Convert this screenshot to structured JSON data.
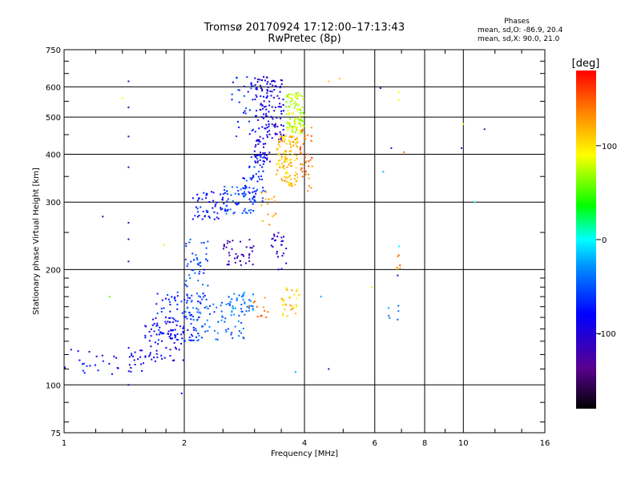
{
  "header": {
    "title": "Tromsø 20170924 17:12:00–17:13:43",
    "subtitle": "RwPretec (8p)",
    "phases_label": "Phases",
    "mean_o": "mean, sd,O: -86.9, 20.4",
    "mean_x": "mean, sd,X:  90.0, 21.0"
  },
  "colorbar": {
    "unit_label": "[deg]",
    "ticks": [
      {
        "label": "100",
        "value": 100
      },
      {
        "label": "0",
        "value": 0
      },
      {
        "label": "-100",
        "value": -100
      }
    ],
    "range": [
      -180,
      180
    ]
  },
  "chart_data": {
    "type": "scatter",
    "title": "Tromsø 20170924 17:12:00–17:13:43",
    "subtitle": "RwPretec (8p)",
    "xlabel": "Frequency [MHz]",
    "ylabel": "Stationary phase Virtual Height [km]",
    "x_scale": "log",
    "y_scale": "log",
    "xlim": [
      1,
      16
    ],
    "ylim": [
      75,
      750
    ],
    "xticks": [
      {
        "label": "1",
        "value": 1
      },
      {
        "label": "2",
        "value": 2
      },
      {
        "label": "4",
        "value": 4
      },
      {
        "label": "6",
        "value": 6
      },
      {
        "label": "8",
        "value": 8
      },
      {
        "label": "10",
        "value": 10
      },
      {
        "label": "16",
        "value": 16
      }
    ],
    "yticks": [
      {
        "label": "750",
        "value": 750
      },
      {
        "label": "600",
        "value": 600
      },
      {
        "label": "500",
        "value": 500
      },
      {
        "label": "400",
        "value": 400
      },
      {
        "label": "300",
        "value": 300
      },
      {
        "label": "200",
        "value": 200
      },
      {
        "label": "100",
        "value": 100
      },
      {
        "label": "75",
        "value": 75
      }
    ],
    "grid": true,
    "color_quantity": "phase [deg]",
    "point_groups": [
      {
        "x_range": [
          1.0,
          1.6
        ],
        "y_range": [
          105,
          125
        ],
        "phase": -85,
        "count": 40
      },
      {
        "x_range": [
          1.55,
          2.0
        ],
        "y_range": [
          115,
          150
        ],
        "phase": -95,
        "count": 70
      },
      {
        "x_range": [
          1.7,
          2.2
        ],
        "y_range": [
          130,
          175
        ],
        "phase": -70,
        "count": 90
      },
      {
        "x_range": [
          2.0,
          2.9
        ],
        "y_range": [
          130,
          175
        ],
        "phase": -45,
        "count": 90
      },
      {
        "x_range": [
          2.0,
          2.3
        ],
        "y_range": [
          170,
          240
        ],
        "phase": -55,
        "count": 45
      },
      {
        "x_range": [
          2.6,
          3.0
        ],
        "y_range": [
          150,
          175
        ],
        "phase": -35,
        "count": 30
      },
      {
        "x_range": [
          3.5,
          3.9
        ],
        "y_range": [
          150,
          180
        ],
        "phase": 110,
        "count": 30
      },
      {
        "x_range": [
          2.9,
          3.25
        ],
        "y_range": [
          150,
          170
        ],
        "phase": 140,
        "count": 12
      },
      {
        "x_range": [
          2.5,
          3.0
        ],
        "y_range": [
          205,
          240
        ],
        "phase": -115,
        "count": 40
      },
      {
        "x_range": [
          3.3,
          3.6
        ],
        "y_range": [
          200,
          250
        ],
        "phase": -105,
        "count": 25
      },
      {
        "x_range": [
          2.1,
          2.6
        ],
        "y_range": [
          270,
          320
        ],
        "phase": -75,
        "count": 55
      },
      {
        "x_range": [
          2.5,
          3.0
        ],
        "y_range": [
          280,
          330
        ],
        "phase": -55,
        "count": 60
      },
      {
        "x_range": [
          2.8,
          3.2
        ],
        "y_range": [
          300,
          400
        ],
        "phase": -65,
        "count": 55
      },
      {
        "x_range": [
          3.0,
          3.3
        ],
        "y_range": [
          380,
          640
        ],
        "phase": -95,
        "count": 110
      },
      {
        "x_range": [
          3.3,
          3.55
        ],
        "y_range": [
          430,
          630
        ],
        "phase": -100,
        "count": 60
      },
      {
        "x_range": [
          2.6,
          3.0
        ],
        "y_range": [
          430,
          640
        ],
        "phase": -65,
        "count": 30
      },
      {
        "x_range": [
          3.4,
          3.85
        ],
        "y_range": [
          330,
          450
        ],
        "phase": 115,
        "count": 120
      },
      {
        "x_range": [
          3.6,
          4.0
        ],
        "y_range": [
          450,
          580
        ],
        "phase": 75,
        "count": 100
      },
      {
        "x_range": [
          3.9,
          4.2
        ],
        "y_range": [
          320,
          470
        ],
        "phase": 140,
        "count": 40
      },
      {
        "x_range": [
          3.1,
          3.4
        ],
        "y_range": [
          260,
          330
        ],
        "phase": 125,
        "count": 15
      },
      {
        "x_range": [
          6.8,
          7.0
        ],
        "y_range": [
          200,
          220
        ],
        "phase": 130,
        "count": 6
      },
      {
        "x_range": [
          6.4,
          6.9
        ],
        "y_range": [
          145,
          170
        ],
        "phase": -40,
        "count": 6
      }
    ],
    "isolated_points": [
      {
        "x": 1.45,
        "y": 620,
        "phase": -100
      },
      {
        "x": 1.45,
        "y": 530,
        "phase": -100
      },
      {
        "x": 1.45,
        "y": 445,
        "phase": -110
      },
      {
        "x": 1.45,
        "y": 370,
        "phase": -110
      },
      {
        "x": 1.45,
        "y": 265,
        "phase": -100
      },
      {
        "x": 1.45,
        "y": 240,
        "phase": -100
      },
      {
        "x": 1.45,
        "y": 210,
        "phase": -110
      },
      {
        "x": 1.45,
        "y": 100,
        "phase": -110
      },
      {
        "x": 1.4,
        "y": 560,
        "phase": 90
      },
      {
        "x": 1.25,
        "y": 275,
        "phase": -100
      },
      {
        "x": 1.3,
        "y": 170,
        "phase": 60
      },
      {
        "x": 1.78,
        "y": 232,
        "phase": 100
      },
      {
        "x": 1.97,
        "y": 95,
        "phase": -90
      },
      {
        "x": 4.6,
        "y": 620,
        "phase": 110
      },
      {
        "x": 4.9,
        "y": 630,
        "phase": 110
      },
      {
        "x": 6.2,
        "y": 595,
        "phase": -100
      },
      {
        "x": 6.3,
        "y": 360,
        "phase": -20
      },
      {
        "x": 6.6,
        "y": 415,
        "phase": -110
      },
      {
        "x": 7.1,
        "y": 405,
        "phase": 140
      },
      {
        "x": 6.9,
        "y": 580,
        "phase": 90
      },
      {
        "x": 6.9,
        "y": 555,
        "phase": 90
      },
      {
        "x": 6.85,
        "y": 193,
        "phase": -100
      },
      {
        "x": 6.9,
        "y": 230,
        "phase": 0
      },
      {
        "x": 4.6,
        "y": 110,
        "phase": -110
      },
      {
        "x": 4.4,
        "y": 170,
        "phase": -20
      },
      {
        "x": 3.8,
        "y": 108,
        "phase": -20
      },
      {
        "x": 9.9,
        "y": 415,
        "phase": -110
      },
      {
        "x": 11.3,
        "y": 465,
        "phase": -130
      },
      {
        "x": 10.7,
        "y": 300,
        "phase": 0
      },
      {
        "x": 10.0,
        "y": 480,
        "phase": 95
      },
      {
        "x": 5.9,
        "y": 180,
        "phase": 100
      }
    ]
  }
}
